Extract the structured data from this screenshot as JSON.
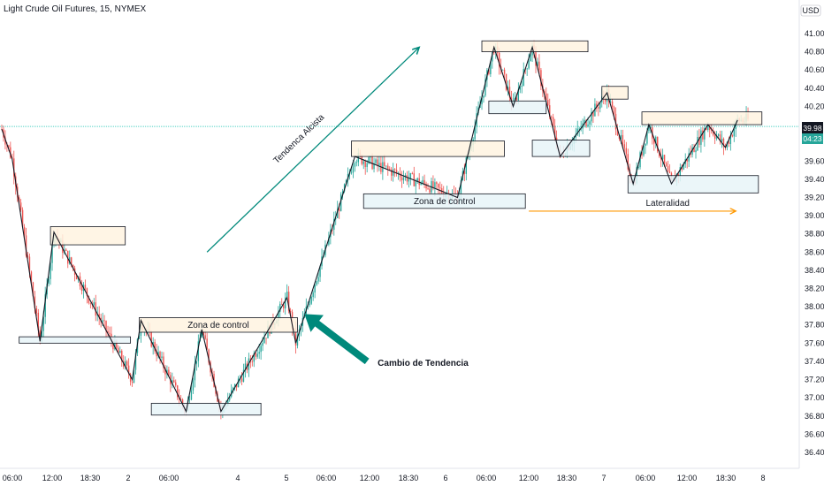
{
  "header": {
    "title": "Light Crude Oil Futures, 15, NYMEX",
    "currency": "USD"
  },
  "price_badges": {
    "last_price": "39.98",
    "countdown": "04:23"
  },
  "colors": {
    "up": "#26a69a",
    "down": "#ef5350",
    "zigzag": "#131722",
    "trend_arrow": "#00897b",
    "lateral_arrow": "#ff9800",
    "zone_fill": "#fff3e0",
    "support_fill": "#e8f4f8",
    "price_line": "#4dd0c4",
    "badge_dark": "#131722",
    "badge_teal": "#26a69a"
  },
  "chart_data": {
    "type": "candlestick",
    "title": "Light Crude Oil Futures, 15, NYMEX",
    "y_axis": {
      "unit": "USD",
      "ylim": [
        36.3,
        41.2
      ],
      "ticks": [
        "41.00",
        "40.80",
        "40.60",
        "40.40",
        "40.20",
        "39.98",
        "39.60",
        "39.40",
        "39.20",
        "39.00",
        "38.80",
        "38.60",
        "38.40",
        "38.20",
        "38.00",
        "37.80",
        "37.60",
        "37.40",
        "37.20",
        "37.00",
        "36.80",
        "36.60",
        "36.40"
      ]
    },
    "x_axis": {
      "ticks": [
        "06:00",
        "12:00",
        "18:30",
        "2",
        "06:00",
        "4",
        "5",
        "06:00",
        "12:00",
        "18:30",
        "6",
        "06:00",
        "12:00",
        "18:30",
        "7",
        "06:00",
        "12:00",
        "18:30",
        "8"
      ]
    },
    "zigzag": [
      [
        0,
        39.95
      ],
      [
        6,
        39.62
      ],
      [
        22,
        37.62
      ],
      [
        30,
        38.82
      ],
      [
        75,
        37.2
      ],
      [
        80,
        37.85
      ],
      [
        106,
        36.85
      ],
      [
        115,
        37.75
      ],
      [
        126,
        36.85
      ],
      [
        164,
        38.1
      ],
      [
        169,
        37.6
      ],
      [
        203,
        39.65
      ],
      [
        262,
        39.2
      ],
      [
        283,
        40.85
      ],
      [
        294,
        40.2
      ],
      [
        305,
        40.85
      ],
      [
        321,
        39.65
      ],
      [
        348,
        40.35
      ],
      [
        363,
        39.35
      ],
      [
        372,
        40.0
      ],
      [
        385,
        39.35
      ],
      [
        406,
        40.0
      ],
      [
        416,
        39.75
      ],
      [
        423,
        40.05
      ]
    ],
    "zones": [
      {
        "label": "",
        "x": [
          28,
          71
        ],
        "y": [
          38.68,
          38.88
        ]
      },
      {
        "label": "",
        "x": [
          10,
          74
        ],
        "y": [
          37.6,
          37.67
        ]
      },
      {
        "label": "Zona de control",
        "x": [
          79,
          170
        ],
        "y": [
          37.72,
          37.88
        ]
      },
      {
        "label": "",
        "x": [
          86,
          149
        ],
        "y": [
          36.81,
          36.94
        ]
      },
      {
        "label": "",
        "x": [
          201,
          289
        ],
        "y": [
          39.65,
          39.82
        ]
      },
      {
        "label": "Zona de control",
        "x": [
          208,
          301
        ],
        "y": [
          39.08,
          39.24
        ]
      },
      {
        "label": "",
        "x": [
          276,
          337
        ],
        "y": [
          40.8,
          40.92
        ]
      },
      {
        "label": "",
        "x": [
          280,
          313
        ],
        "y": [
          40.12,
          40.26
        ]
      },
      {
        "label": "",
        "x": [
          305,
          338
        ],
        "y": [
          39.65,
          39.83
        ]
      },
      {
        "label": "",
        "x": [
          345,
          360
        ],
        "y": [
          40.28,
          40.42
        ]
      },
      {
        "label": "",
        "x": [
          368,
          437
        ],
        "y": [
          40.0,
          40.14
        ]
      },
      {
        "label": "",
        "x": [
          360,
          435
        ],
        "y": [
          39.25,
          39.44
        ]
      }
    ],
    "annotations": [
      {
        "text": "Tendenca Alcista",
        "kind": "trend_arrow",
        "from": [
          118,
          38.6
        ],
        "to": [
          240,
          40.85
        ]
      },
      {
        "text": "Lateralidad",
        "kind": "lateral_arrow",
        "from": [
          303,
          39.05
        ],
        "to": [
          422,
          39.05
        ]
      },
      {
        "text": "Cambio de Tendencia",
        "kind": "callout_arrow",
        "from": [
          210,
          37.4
        ],
        "to": [
          174,
          37.92
        ]
      }
    ],
    "last_price_line": 39.98,
    "series": [
      {
        "name": "",
        "kind": "ohlc"
      }
    ]
  }
}
